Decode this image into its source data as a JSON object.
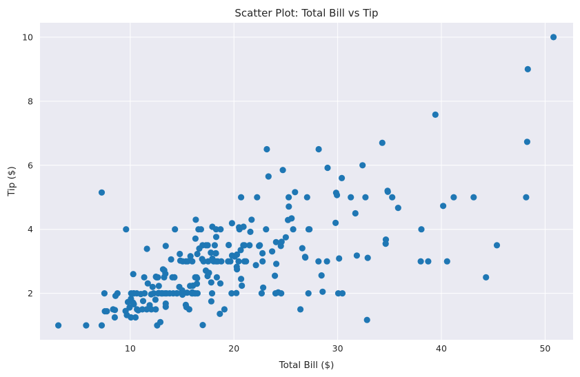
{
  "chart_data": {
    "type": "scatter",
    "title": "Scatter Plot: Total Bill vs Tip",
    "xlabel": "Total Bill ($)",
    "ylabel": "Tip ($)",
    "xlim": [
      1.3,
      52.7
    ],
    "ylim": [
      0.55,
      10.45
    ],
    "xticks": [
      10,
      20,
      30,
      40,
      50
    ],
    "yticks": [
      2,
      4,
      6,
      8,
      10
    ],
    "grid": true,
    "marker_color": "#1f77b4",
    "background_color": "#eaeaf2",
    "points": [
      [
        3.07,
        1.0
      ],
      [
        5.75,
        1.0
      ],
      [
        7.25,
        1.0
      ],
      [
        12.6,
        1.0
      ],
      [
        16.99,
        1.01
      ],
      [
        12.9,
        1.1
      ],
      [
        32.83,
        1.17
      ],
      [
        7.25,
        5.15
      ],
      [
        9.6,
        4.0
      ],
      [
        7.51,
        2.0
      ],
      [
        7.56,
        1.44
      ],
      [
        7.74,
        1.44
      ],
      [
        8.35,
        1.5
      ],
      [
        8.51,
        1.25
      ],
      [
        8.52,
        1.48
      ],
      [
        8.58,
        1.92
      ],
      [
        8.77,
        2.0
      ],
      [
        9.55,
        1.45
      ],
      [
        9.68,
        1.32
      ],
      [
        9.78,
        1.73
      ],
      [
        9.94,
        1.56
      ],
      [
        10.07,
        1.25
      ],
      [
        10.07,
        1.83
      ],
      [
        10.09,
        2.0
      ],
      [
        10.27,
        1.71
      ],
      [
        10.29,
        2.6
      ],
      [
        10.33,
        1.67
      ],
      [
        10.33,
        2.0
      ],
      [
        10.34,
        1.66
      ],
      [
        10.34,
        2.0
      ],
      [
        10.51,
        1.25
      ],
      [
        10.63,
        2.0
      ],
      [
        10.65,
        1.5
      ],
      [
        10.77,
        1.47
      ],
      [
        11.02,
        1.98
      ],
      [
        11.17,
        1.5
      ],
      [
        11.24,
        1.76
      ],
      [
        11.35,
        2.5
      ],
      [
        11.38,
        2.0
      ],
      [
        11.59,
        1.5
      ],
      [
        11.61,
        3.39
      ],
      [
        11.69,
        2.31
      ],
      [
        11.87,
        1.63
      ],
      [
        12.02,
        1.97
      ],
      [
        12.03,
        1.5
      ],
      [
        12.16,
        2.2
      ],
      [
        12.26,
        2.0
      ],
      [
        12.43,
        1.8
      ],
      [
        12.46,
        1.5
      ],
      [
        12.48,
        2.52
      ],
      [
        12.54,
        2.5
      ],
      [
        12.66,
        2.5
      ],
      [
        12.69,
        2.0
      ],
      [
        12.74,
        2.01
      ],
      [
        12.76,
        2.23
      ],
      [
        13.0,
        2.0
      ],
      [
        13.03,
        2.0
      ],
      [
        13.13,
        2.0
      ],
      [
        13.16,
        2.75
      ],
      [
        13.27,
        2.5
      ],
      [
        13.28,
        2.72
      ],
      [
        13.37,
        2.0
      ],
      [
        13.39,
        2.61
      ],
      [
        13.42,
        1.58
      ],
      [
        13.42,
        3.48
      ],
      [
        13.42,
        1.68
      ],
      [
        13.51,
        2.0
      ],
      [
        13.81,
        2.0
      ],
      [
        13.94,
        3.06
      ],
      [
        14.07,
        2.5
      ],
      [
        14.15,
        2.0
      ],
      [
        14.26,
        2.5
      ],
      [
        14.31,
        4.0
      ],
      [
        14.48,
        2.0
      ],
      [
        14.52,
        2.0
      ],
      [
        14.73,
        2.2
      ],
      [
        14.78,
        3.23
      ],
      [
        14.83,
        3.02
      ],
      [
        15.01,
        2.09
      ],
      [
        15.04,
        1.96
      ],
      [
        15.06,
        3.0
      ],
      [
        15.36,
        1.64
      ],
      [
        15.38,
        3.0
      ],
      [
        15.42,
        1.57
      ],
      [
        15.48,
        2.02
      ],
      [
        15.53,
        3.0
      ],
      [
        15.69,
        1.5
      ],
      [
        15.77,
        2.23
      ],
      [
        15.81,
        3.16
      ],
      [
        15.95,
        2.0
      ],
      [
        15.98,
        2.03
      ],
      [
        15.98,
        3.0
      ],
      [
        16.0,
        2.0
      ],
      [
        16.04,
        2.24
      ],
      [
        16.21,
        2.0
      ],
      [
        16.27,
        2.5
      ],
      [
        16.29,
        3.71
      ],
      [
        16.31,
        2.0
      ],
      [
        16.32,
        4.3
      ],
      [
        16.4,
        2.5
      ],
      [
        16.43,
        2.3
      ],
      [
        16.45,
        2.47
      ],
      [
        16.47,
        3.23
      ],
      [
        16.49,
        2.0
      ],
      [
        16.58,
        4.0
      ],
      [
        16.66,
        3.4
      ],
      [
        16.82,
        4.0
      ],
      [
        16.93,
        3.07
      ],
      [
        16.97,
        3.5
      ],
      [
        17.07,
        3.0
      ],
      [
        17.29,
        2.71
      ],
      [
        17.31,
        3.5
      ],
      [
        17.46,
        2.54
      ],
      [
        17.47,
        3.5
      ],
      [
        17.51,
        3.0
      ],
      [
        17.59,
        2.64
      ],
      [
        17.78,
        3.27
      ],
      [
        17.81,
        2.34
      ],
      [
        17.82,
        1.75
      ],
      [
        17.89,
        2.0
      ],
      [
        17.92,
        4.08
      ],
      [
        17.92,
        3.08
      ],
      [
        18.04,
        3.0
      ],
      [
        18.15,
        3.5
      ],
      [
        18.24,
        3.25
      ],
      [
        18.26,
        3.25
      ],
      [
        18.28,
        4.0
      ],
      [
        18.29,
        3.76
      ],
      [
        18.29,
        3.0
      ],
      [
        18.35,
        2.5
      ],
      [
        18.43,
        3.0
      ],
      [
        18.64,
        1.36
      ],
      [
        18.69,
        2.31
      ],
      [
        18.71,
        4.0
      ],
      [
        18.78,
        3.0
      ],
      [
        19.08,
        1.5
      ],
      [
        19.44,
        3.0
      ],
      [
        19.49,
        3.51
      ],
      [
        19.65,
        3.0
      ],
      [
        19.77,
        2.0
      ],
      [
        19.81,
        4.19
      ],
      [
        19.82,
        3.18
      ],
      [
        20.08,
        3.15
      ],
      [
        20.23,
        2.01
      ],
      [
        20.27,
        2.83
      ],
      [
        20.29,
        2.75
      ],
      [
        20.29,
        3.21
      ],
      [
        20.45,
        3.0
      ],
      [
        20.49,
        4.06
      ],
      [
        20.53,
        4.0
      ],
      [
        20.65,
        3.35
      ],
      [
        20.69,
        2.45
      ],
      [
        20.69,
        5.0
      ],
      [
        20.76,
        2.24
      ],
      [
        20.9,
        3.5
      ],
      [
        20.92,
        4.08
      ],
      [
        21.01,
        3.5
      ],
      [
        21.01,
        3.0
      ],
      [
        21.16,
        3.0
      ],
      [
        21.5,
        3.5
      ],
      [
        21.58,
        3.92
      ],
      [
        21.7,
        4.3
      ],
      [
        22.12,
        2.88
      ],
      [
        22.23,
        5.0
      ],
      [
        22.42,
        3.48
      ],
      [
        22.49,
        3.5
      ],
      [
        22.67,
        2.0
      ],
      [
        22.75,
        3.25
      ],
      [
        22.76,
        3.0
      ],
      [
        22.82,
        2.18
      ],
      [
        23.1,
        4.0
      ],
      [
        23.17,
        6.5
      ],
      [
        23.33,
        5.65
      ],
      [
        23.68,
        3.31
      ],
      [
        23.95,
        2.55
      ],
      [
        24.01,
        2.0
      ],
      [
        24.06,
        3.6
      ],
      [
        24.08,
        2.92
      ],
      [
        24.27,
        2.03
      ],
      [
        24.52,
        3.48
      ],
      [
        24.55,
        2.0
      ],
      [
        24.59,
        3.61
      ],
      [
        24.71,
        5.85
      ],
      [
        25.0,
        3.75
      ],
      [
        25.21,
        4.29
      ],
      [
        25.28,
        5.0
      ],
      [
        25.29,
        4.71
      ],
      [
        25.56,
        4.34
      ],
      [
        25.71,
        4.0
      ],
      [
        25.89,
        5.16
      ],
      [
        26.41,
        1.5
      ],
      [
        26.59,
        3.41
      ],
      [
        26.86,
        3.14
      ],
      [
        26.88,
        3.12
      ],
      [
        27.05,
        5.0
      ],
      [
        27.18,
        2.0
      ],
      [
        27.2,
        4.0
      ],
      [
        27.28,
        4.0
      ],
      [
        28.15,
        3.0
      ],
      [
        28.17,
        6.5
      ],
      [
        28.44,
        2.56
      ],
      [
        28.55,
        2.05
      ],
      [
        28.97,
        3.0
      ],
      [
        29.03,
        5.92
      ],
      [
        29.8,
        4.2
      ],
      [
        29.85,
        5.14
      ],
      [
        29.93,
        5.07
      ],
      [
        30.06,
        2.0
      ],
      [
        30.14,
        3.09
      ],
      [
        30.4,
        5.6
      ],
      [
        30.46,
        2.0
      ],
      [
        31.27,
        5.0
      ],
      [
        31.71,
        4.5
      ],
      [
        31.85,
        3.18
      ],
      [
        32.4,
        6.0
      ],
      [
        32.68,
        5.0
      ],
      [
        32.9,
        3.11
      ],
      [
        34.3,
        6.7
      ],
      [
        34.63,
        3.55
      ],
      [
        34.65,
        3.68
      ],
      [
        34.81,
        5.2
      ],
      [
        34.83,
        5.17
      ],
      [
        35.26,
        5.0
      ],
      [
        35.83,
        4.67
      ],
      [
        38.01,
        3.0
      ],
      [
        38.07,
        4.0
      ],
      [
        38.73,
        3.0
      ],
      [
        39.42,
        7.58
      ],
      [
        40.17,
        4.73
      ],
      [
        40.55,
        3.0
      ],
      [
        41.19,
        5.0
      ],
      [
        43.11,
        5.0
      ],
      [
        44.3,
        2.5
      ],
      [
        45.35,
        3.5
      ],
      [
        48.17,
        5.0
      ],
      [
        48.27,
        6.73
      ],
      [
        48.33,
        9.0
      ],
      [
        50.81,
        10.0
      ]
    ]
  }
}
